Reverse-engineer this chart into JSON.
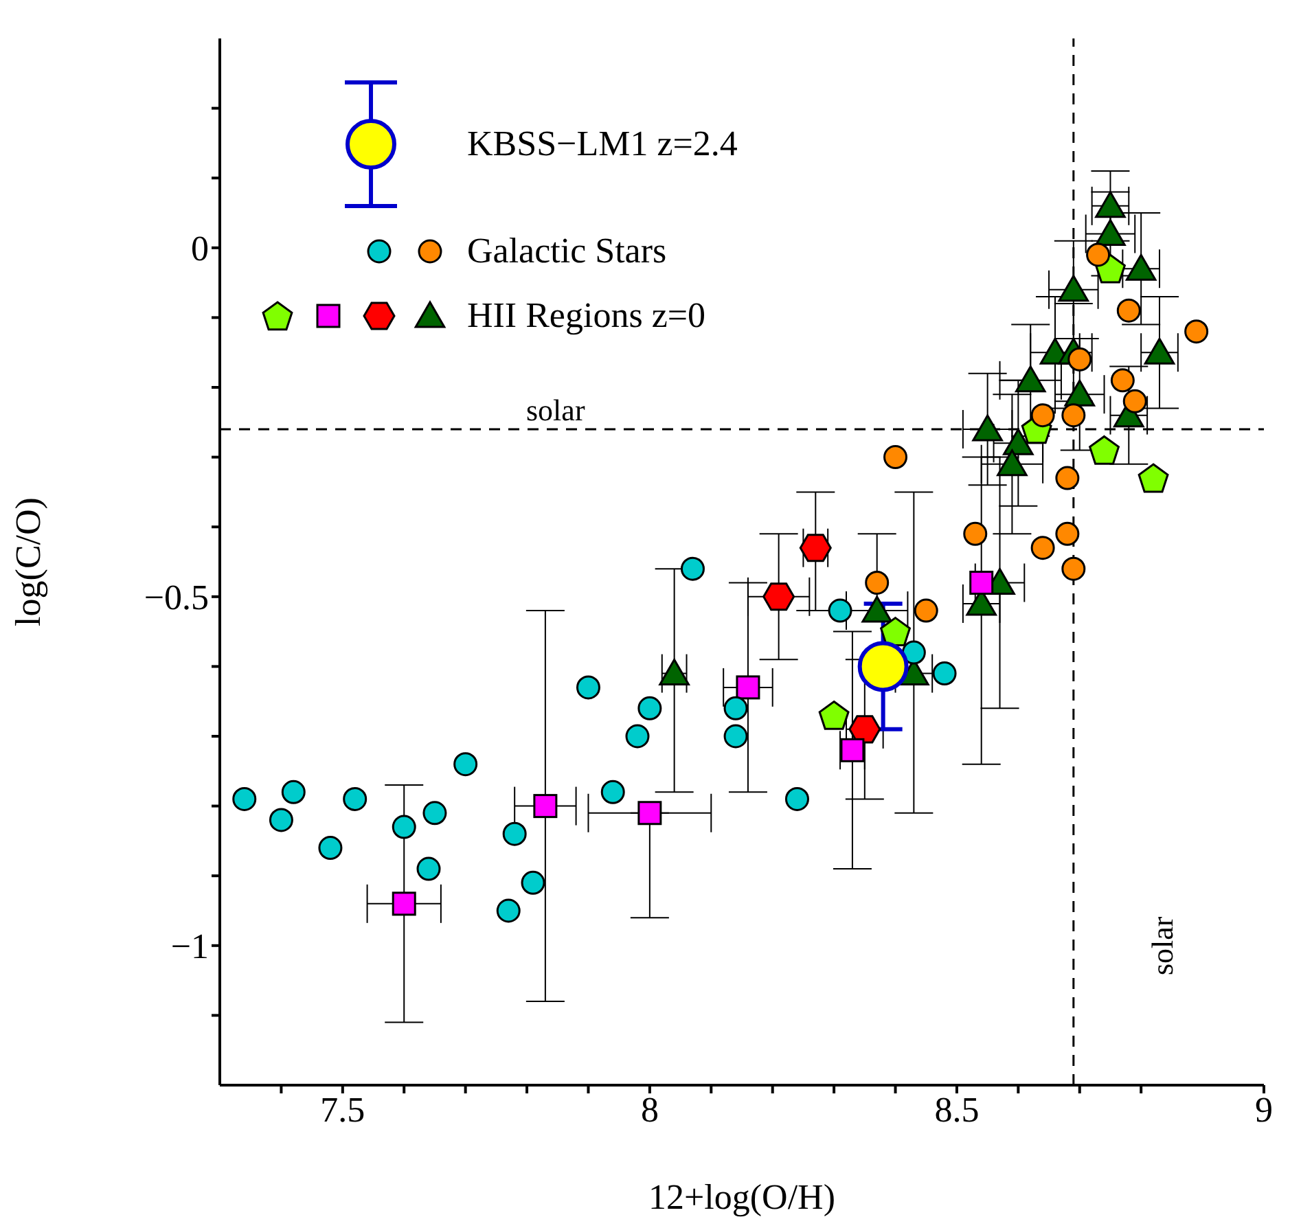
{
  "chart_data": {
    "type": "scatter",
    "xlabel": "12+log(O/H)",
    "ylabel": "log(C/O)",
    "xlim": [
      7.3,
      9.0
    ],
    "ylim": [
      -1.2,
      0.3
    ],
    "xticks": [
      {
        "value": 7.4,
        "label": null
      },
      {
        "value": 7.5,
        "label": "7.5"
      },
      {
        "value": 7.6,
        "label": null
      },
      {
        "value": 7.7,
        "label": null
      },
      {
        "value": 7.8,
        "label": null
      },
      {
        "value": 7.9,
        "label": null
      },
      {
        "value": 8,
        "label": "8"
      },
      {
        "value": 8.1,
        "label": null
      },
      {
        "value": 8.2,
        "label": null
      },
      {
        "value": 8.3,
        "label": null
      },
      {
        "value": 8.4,
        "label": null
      },
      {
        "value": 8.5,
        "label": "8.5"
      },
      {
        "value": 8.6,
        "label": null
      },
      {
        "value": 8.7,
        "label": null
      },
      {
        "value": 8.8,
        "label": null
      },
      {
        "value": 9,
        "label": "9"
      }
    ],
    "yticks": [
      {
        "value": -1.1,
        "label": null
      },
      {
        "value": -1,
        "label": "−1"
      },
      {
        "value": -0.9,
        "label": null
      },
      {
        "value": -0.8,
        "label": null
      },
      {
        "value": -0.7,
        "label": null
      },
      {
        "value": -0.6,
        "label": null
      },
      {
        "value": -0.5,
        "label": "−0.5"
      },
      {
        "value": -0.4,
        "label": null
      },
      {
        "value": -0.3,
        "label": null
      },
      {
        "value": -0.2,
        "label": null
      },
      {
        "value": -0.1,
        "label": null
      },
      {
        "value": 0,
        "label": "0"
      },
      {
        "value": 0.1,
        "label": null
      },
      {
        "value": 0.2,
        "label": null
      }
    ],
    "legend": "top left",
    "ref_lines": [
      {
        "axis": "x",
        "value": 8.69,
        "label": "solar",
        "line_style": "dashed",
        "color": "#000000"
      },
      {
        "axis": "y",
        "value": -0.26,
        "label": "solar",
        "line_style": "dashed",
        "color": "#000000"
      }
    ],
    "series": [
      {
        "name": "HII Regions z=0",
        "color": "#006400",
        "colors": [
          "#006400",
          "#006400",
          "#006400",
          "#006400",
          "#006400",
          "#006400",
          "#006400",
          "#006400",
          "#006400",
          "#006400",
          "#006400",
          "#006400",
          "#006400",
          "#006400",
          "#006400",
          "#006400",
          "#006400",
          "#006400",
          "#ff0000",
          "#ff0000",
          "#ff0000",
          "#ff00ff",
          "#ff00ff",
          "#ff00ff",
          "#ff00ff",
          "#ff00ff",
          "#ff00ff",
          "#80ff00",
          "#80ff00",
          "#80ff00",
          "#80ff00",
          "#80ff00",
          "#80ff00"
        ],
        "marker": [
          "triangle",
          "triangle",
          "triangle",
          "triangle",
          "triangle",
          "triangle",
          "triangle",
          "triangle",
          "triangle",
          "triangle",
          "triangle",
          "triangle",
          "triangle",
          "triangle",
          "triangle",
          "triangle",
          "triangle",
          "triangle",
          "hexagon",
          "hexagon",
          "hexagon",
          "square",
          "square",
          "square",
          "square",
          "square",
          "square",
          "pentagon",
          "pentagon",
          "pentagon",
          "pentagon",
          "pentagon",
          "pentagon"
        ],
        "x": [
          8.04,
          8.37,
          8.43,
          8.54,
          8.57,
          8.75,
          8.75,
          8.8,
          8.69,
          8.83,
          8.66,
          8.69,
          8.62,
          8.7,
          8.78,
          8.55,
          8.6,
          8.59,
          8.21,
          8.27,
          8.35,
          7.6,
          7.83,
          8.0,
          8.16,
          8.33,
          8.54,
          8.75,
          8.63,
          8.74,
          8.82,
          8.4,
          8.3
        ],
        "values": [
          -0.61,
          -0.52,
          -0.61,
          -0.51,
          -0.48,
          0.06,
          0.02,
          -0.03,
          -0.06,
          -0.15,
          -0.15,
          -0.15,
          -0.19,
          -0.21,
          -0.24,
          -0.26,
          -0.28,
          -0.31,
          -0.5,
          -0.43,
          -0.69,
          -0.94,
          -0.8,
          -0.81,
          -0.63,
          -0.72,
          -0.48,
          -0.03,
          -0.26,
          -0.29,
          -0.33,
          -0.55,
          -0.67
        ],
        "errors": [
          [
            -0.78,
            -0.46
          ],
          [
            -0.52,
            -0.41
          ],
          [
            -0.81,
            -0.35
          ],
          [
            -0.74,
            -0.3
          ],
          [
            -0.66,
            -0.3
          ],
          0.05,
          0.06,
          0.08,
          0.07,
          0.08,
          0.08,
          0.07,
          0.08,
          0.08,
          0.07,
          0.08,
          0.09,
          0.1,
          [
            -0.59,
            -0.41
          ],
          [
            -0.52,
            -0.35
          ],
          [
            -0.79,
            -0.59
          ],
          [
            -1.11,
            -0.77
          ],
          [
            -1.08,
            -0.52
          ],
          [
            -0.96,
            -0.81
          ],
          [
            -0.78,
            -0.48
          ],
          [
            -0.89,
            -0.55
          ],
          null,
          null,
          null,
          null,
          null,
          null,
          null
        ],
        "xerrors": [
          0.02,
          0.05,
          0.03,
          0.03,
          0.04,
          0.03,
          0.04,
          0.03,
          0.04,
          0.03,
          0.04,
          0.03,
          0.05,
          0.04,
          0.03,
          0.04,
          0.04,
          0.05,
          0.05,
          0.02,
          0.03,
          0.06,
          0.05,
          0.1,
          0.04,
          0.02,
          null,
          null,
          null,
          null,
          null,
          null,
          null
        ]
      },
      {
        "name": "Galactic Stars",
        "color": "#00cccc",
        "marker": "circle",
        "colors": [
          "#ff8800",
          "#ff8800",
          "#ff8800",
          "#ff8800",
          "#ff8800",
          "#ff8800",
          "#ff8800",
          "#ff8800",
          "#ff8800",
          "#ff8800",
          "#ff8800",
          "#ff8800",
          "#ff8800",
          "#ff8800",
          "#ff8800",
          "#ff8800",
          "#00cccc",
          "#00cccc",
          "#00cccc",
          "#00cccc",
          "#00cccc",
          "#00cccc",
          "#00cccc",
          "#00cccc",
          "#00cccc",
          "#00cccc",
          "#00cccc",
          "#00cccc",
          "#00cccc",
          "#00cccc",
          "#00cccc",
          "#00cccc",
          "#00cccc",
          "#00cccc",
          "#00cccc",
          "#00cccc",
          "#00cccc",
          "#00cccc",
          "#00cccc"
        ],
        "x": [
          8.73,
          8.78,
          8.89,
          8.7,
          8.77,
          8.79,
          8.64,
          8.69,
          8.4,
          8.68,
          8.53,
          8.68,
          8.64,
          8.69,
          8.37,
          8.45,
          7.34,
          7.4,
          7.42,
          7.48,
          7.52,
          7.6,
          7.65,
          7.64,
          7.7,
          7.78,
          7.81,
          7.77,
          7.9,
          7.94,
          7.98,
          8.0,
          8.07,
          8.14,
          8.14,
          8.24,
          8.31,
          8.48,
          8.43
        ],
        "values": [
          -0.01,
          -0.09,
          -0.12,
          -0.16,
          -0.19,
          -0.22,
          -0.24,
          -0.24,
          -0.3,
          -0.33,
          -0.41,
          -0.41,
          -0.43,
          -0.46,
          -0.48,
          -0.52,
          -0.79,
          -0.82,
          -0.78,
          -0.86,
          -0.79,
          -0.83,
          -0.81,
          -0.89,
          -0.74,
          -0.84,
          -0.91,
          -0.95,
          -0.63,
          -0.78,
          -0.7,
          -0.66,
          -0.46,
          -0.66,
          -0.7,
          -0.79,
          -0.52,
          -0.61,
          -0.58
        ]
      },
      {
        "name": "KBSS−LM1 z=2.4",
        "color": "#0000cc",
        "colors": [
          "#ffff00"
        ],
        "marker": "big-circle",
        "x": [
          8.38
        ],
        "values": [
          -0.6
        ],
        "errors": [
          [
            -0.69,
            -0.51
          ]
        ]
      }
    ]
  }
}
